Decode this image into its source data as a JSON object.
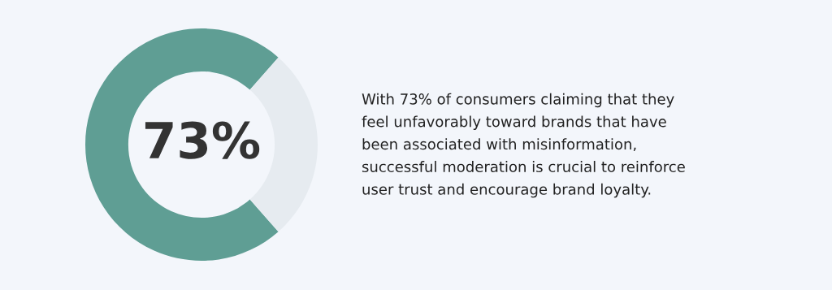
{
  "chart_data": {
    "type": "donut",
    "categories": [
      null,
      null
    ],
    "values": [
      73,
      27
    ],
    "colors": [
      "#5f9e94",
      "#e6ebf0"
    ],
    "value_labels": [
      "73%",
      null
    ],
    "annotations": [
      "With 73% of consumers claiming that they\nfeel unfavorably toward brands that have\nbeen associated with misinformation,\nsuccessful moderation is crucial to reinforce\nuser trust and encourage brand loyalty."
    ]
  }
}
